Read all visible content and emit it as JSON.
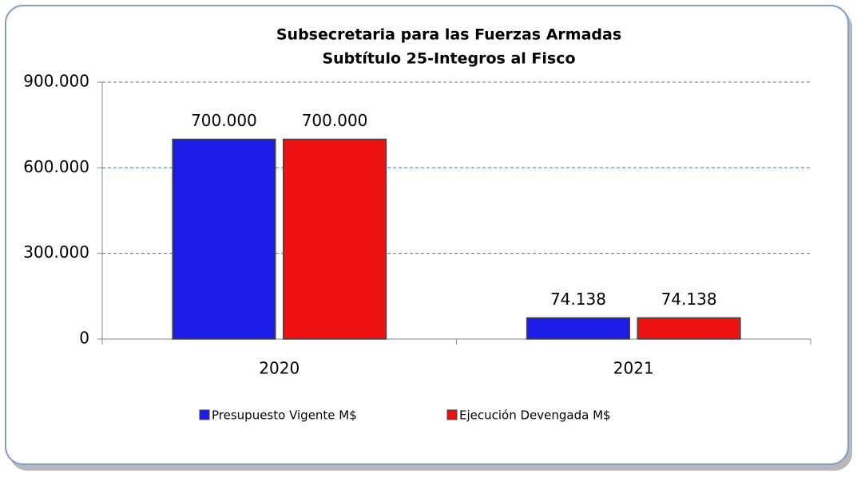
{
  "chart_data": {
    "type": "bar",
    "title": "Subsecretaria para las Fuerzas Armadas",
    "subtitle": "Subtítulo 25-Integros al Fisco",
    "categories": [
      "2020",
      "2021"
    ],
    "series": [
      {
        "name": "Presupuesto Vigente M$",
        "color": "#1c1ce6",
        "values": [
          700000,
          74138
        ],
        "value_labels": [
          "700.000",
          "74.138"
        ]
      },
      {
        "name": "Ejecución Devengada M$",
        "color": "#ee1111",
        "values": [
          700000,
          74138
        ],
        "value_labels": [
          "700.000",
          "74.138"
        ]
      }
    ],
    "ylim": [
      0,
      900000
    ],
    "yticks": [
      0,
      {
        "value": 300000,
        "label": "300.000"
      },
      {
        "value": 600000,
        "label": "600.000"
      },
      {
        "value": 900000,
        "label": "900.000"
      }
    ],
    "grid": true,
    "legend": "bottom"
  }
}
